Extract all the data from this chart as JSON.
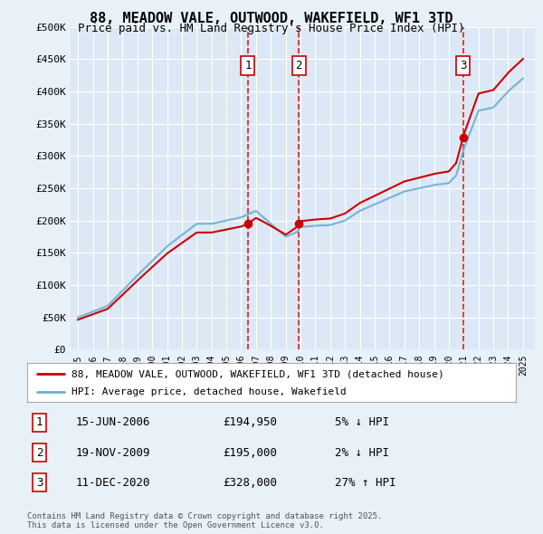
{
  "title1": "88, MEADOW VALE, OUTWOOD, WAKEFIELD, WF1 3TD",
  "title2": "Price paid vs. HM Land Registry's House Price Index (HPI)",
  "legend1": "88, MEADOW VALE, OUTWOOD, WAKEFIELD, WF1 3TD (detached house)",
  "legend2": "HPI: Average price, detached house, Wakefield",
  "footer": "Contains HM Land Registry data © Crown copyright and database right 2025.\nThis data is licensed under the Open Government Licence v3.0.",
  "sales": [
    {
      "num": 1,
      "date": "15-JUN-2006",
      "price": 194950,
      "pct": "5% ↓ HPI",
      "year": 2006.45
    },
    {
      "num": 2,
      "date": "19-NOV-2009",
      "price": 195000,
      "pct": "2% ↓ HPI",
      "year": 2009.88
    },
    {
      "num": 3,
      "date": "11-DEC-2020",
      "price": 328000,
      "pct": "27% ↑ HPI",
      "year": 2020.95
    }
  ],
  "ylim": [
    0,
    500000
  ],
  "yticks": [
    0,
    50000,
    100000,
    150000,
    200000,
    250000,
    300000,
    350000,
    400000,
    450000,
    500000
  ],
  "xlim_start": 1994.5,
  "xlim_end": 2025.8,
  "bg_color": "#e8f0f8",
  "plot_bg": "#dce8f5",
  "grid_color": "#ffffff",
  "hpi_color": "#6baed6",
  "sale_color": "#cc0000",
  "vline_color": "#cc0000",
  "box_color": "#cc0000",
  "key_years": [
    1995,
    1997,
    1999,
    2001,
    2003,
    2004,
    2005,
    2006,
    2006.5,
    2007,
    2008,
    2009,
    2009.75,
    2010,
    2011,
    2012,
    2013,
    2014,
    2015,
    2016,
    2017,
    2018,
    2019,
    2020,
    2020.5,
    2021,
    2022,
    2023,
    2024,
    2025
  ],
  "key_vals": [
    50000,
    68000,
    115000,
    160000,
    195000,
    195000,
    200000,
    205000,
    210000,
    215000,
    195000,
    175000,
    182000,
    190000,
    192000,
    193000,
    200000,
    215000,
    225000,
    235000,
    245000,
    250000,
    255000,
    258000,
    270000,
    310000,
    370000,
    375000,
    400000,
    420000
  ]
}
